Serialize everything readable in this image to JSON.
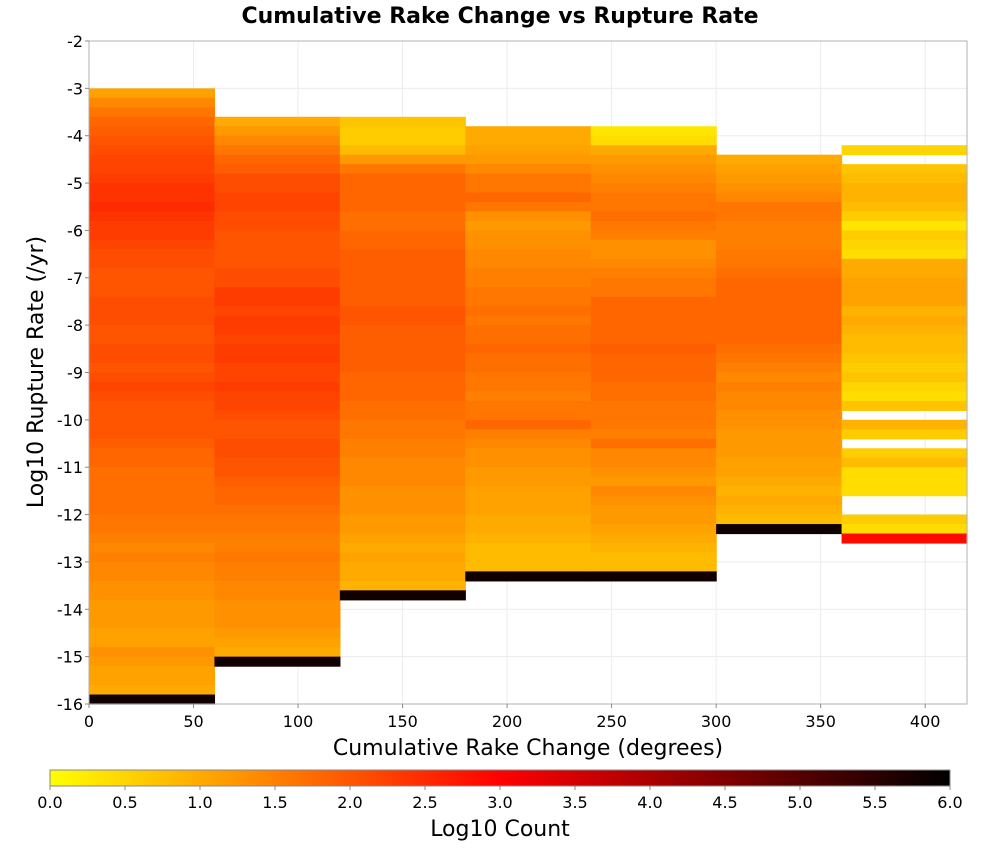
{
  "chart_data": {
    "type": "heatmap",
    "title": "Cumulative Rake Change vs Rupture Rate",
    "xlabel": "Cumulative Rake Change (degrees)",
    "ylabel": "Log10 Rupture Rate (/yr)",
    "xlim": [
      0,
      420
    ],
    "ylim": [
      -16,
      -2
    ],
    "xticks": [
      "0",
      "50",
      "100",
      "150",
      "200",
      "250",
      "300",
      "350",
      "400"
    ],
    "yticks": [
      "-2",
      "-3",
      "-4",
      "-5",
      "-6",
      "-7",
      "-8",
      "-9",
      "-10",
      "-11",
      "-12",
      "-13",
      "-14",
      "-15",
      "-16"
    ],
    "grid": true,
    "x_bin_width": 60,
    "y_bin_height": 0.2,
    "colorbar": {
      "label": "Log10 Count",
      "range": [
        0,
        6
      ],
      "ticks": [
        "0.0",
        "0.5",
        "1.0",
        "1.5",
        "2.0",
        "2.5",
        "3.0",
        "3.5",
        "4.0",
        "4.5",
        "5.0",
        "5.5",
        "6.0"
      ],
      "colors": [
        "#ffff00",
        "#ff8000",
        "#ff0000",
        "#800000",
        "#000000"
      ],
      "placement": "bottom"
    },
    "columns": [
      {
        "x_start": 0,
        "y_top": -3.0,
        "values": [
          1.1,
          1.4,
          1.6,
          1.8,
          1.9,
          2.0,
          2.1,
          2.2,
          2.2,
          2.3,
          2.4,
          2.4,
          2.5,
          2.4,
          2.3,
          2.3,
          2.2,
          2.1,
          2.1,
          2.0,
          2.0,
          2.0,
          2.1,
          2.1,
          2.1,
          2.0,
          2.0,
          2.1,
          2.1,
          2.0,
          2.1,
          2.2,
          2.1,
          2.0,
          2.0,
          2.0,
          2.0,
          1.9,
          1.8,
          1.8,
          1.7,
          1.7,
          1.7,
          1.7,
          1.7,
          1.6,
          1.6,
          1.5,
          1.4,
          1.5,
          1.4,
          1.4,
          1.3,
          1.3,
          1.2,
          1.2,
          1.2,
          1.1,
          1.1,
          1.3,
          1.2,
          1.1,
          1.1,
          1.0,
          5.8
        ]
      },
      {
        "x_start": 60,
        "y_top": -3.6,
        "values": [
          1.0,
          1.2,
          1.4,
          1.6,
          1.8,
          1.9,
          2.1,
          2.1,
          2.2,
          2.2,
          2.1,
          2.1,
          2.0,
          2.0,
          2.0,
          2.0,
          2.1,
          2.1,
          2.3,
          2.3,
          2.2,
          2.3,
          2.3,
          2.2,
          2.3,
          2.3,
          2.2,
          2.2,
          2.3,
          2.2,
          2.2,
          2.1,
          2.0,
          2.0,
          2.1,
          2.1,
          2.0,
          2.0,
          1.9,
          1.8,
          1.8,
          1.7,
          1.6,
          1.6,
          1.5,
          1.5,
          1.6,
          1.5,
          1.5,
          1.4,
          1.4,
          1.3,
          1.3,
          1.3,
          1.2,
          1.1,
          1.0,
          5.8
        ]
      },
      {
        "x_start": 120,
        "y_top": -3.6,
        "values": [
          0.7,
          0.6,
          0.6,
          0.8,
          1.2,
          1.6,
          1.8,
          1.8,
          1.8,
          1.8,
          1.7,
          1.7,
          1.8,
          1.8,
          1.9,
          1.9,
          1.9,
          1.9,
          1.9,
          1.9,
          2.0,
          2.0,
          1.9,
          1.9,
          1.9,
          1.9,
          1.9,
          1.8,
          1.8,
          1.8,
          1.7,
          1.7,
          1.6,
          1.6,
          1.5,
          1.5,
          1.4,
          1.4,
          1.4,
          1.3,
          1.3,
          1.3,
          1.2,
          1.2,
          1.1,
          1.0,
          1.1,
          1.0,
          1.0,
          0.9,
          5.8
        ]
      },
      {
        "x_start": 180,
        "y_top": -3.8,
        "values": [
          1.0,
          1.0,
          1.1,
          1.2,
          1.4,
          1.6,
          1.6,
          1.8,
          1.6,
          1.3,
          1.2,
          1.3,
          1.3,
          1.4,
          1.4,
          1.5,
          1.5,
          1.6,
          1.6,
          1.7,
          1.6,
          1.7,
          1.7,
          1.8,
          1.7,
          1.7,
          1.6,
          1.6,
          1.5,
          1.6,
          1.6,
          1.8,
          1.5,
          1.4,
          1.3,
          1.3,
          1.2,
          1.2,
          1.1,
          1.1,
          1.1,
          1.0,
          1.0,
          0.9,
          0.8,
          0.8,
          0.8,
          5.8
        ]
      },
      {
        "x_start": 240,
        "y_top": -3.8,
        "values": [
          0.3,
          0.4,
          1.0,
          1.2,
          1.3,
          1.4,
          1.5,
          1.6,
          1.6,
          1.7,
          1.6,
          1.5,
          1.3,
          1.3,
          1.4,
          1.5,
          1.6,
          1.6,
          1.8,
          1.8,
          1.8,
          1.8,
          1.8,
          1.9,
          1.8,
          1.8,
          1.8,
          1.7,
          1.7,
          1.6,
          1.6,
          1.6,
          1.5,
          1.7,
          1.4,
          1.4,
          1.3,
          1.2,
          1.4,
          1.3,
          1.2,
          1.2,
          1.1,
          1.0,
          0.9,
          0.8,
          0.8,
          5.8
        ]
      },
      {
        "x_start": 300,
        "y_top": -4.4,
        "values": [
          1.0,
          1.1,
          1.2,
          1.3,
          1.4,
          1.6,
          1.6,
          1.5,
          1.5,
          1.5,
          1.6,
          1.6,
          1.7,
          1.8,
          1.8,
          1.8,
          1.8,
          1.8,
          1.8,
          1.8,
          1.7,
          1.6,
          1.5,
          1.4,
          1.5,
          1.4,
          1.4,
          1.3,
          1.3,
          1.2,
          1.2,
          1.2,
          1.1,
          1.1,
          1.0,
          0.9,
          1.0,
          0.9,
          0.8,
          5.8
        ]
      },
      {
        "x_start": 360,
        "y_top": -4.2,
        "values": [
          0.5,
          null,
          0.7,
          0.8,
          0.9,
          0.9,
          0.8,
          0.6,
          0.3,
          0.6,
          0.5,
          0.4,
          1.0,
          1.0,
          1.1,
          1.1,
          1.1,
          0.9,
          1.0,
          0.9,
          0.8,
          0.8,
          0.7,
          0.6,
          0.7,
          0.5,
          0.4,
          0.7,
          null,
          0.9,
          0.6,
          null,
          0.6,
          0.8,
          0.4,
          0.4,
          0.4,
          null,
          null,
          0.6,
          0.4,
          2.9
        ]
      }
    ]
  }
}
